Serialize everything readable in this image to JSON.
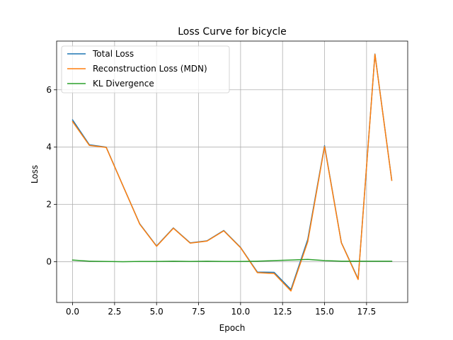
{
  "chart_data": {
    "type": "line",
    "title": "Loss Curve for bicycle",
    "xlabel": "Epoch",
    "ylabel": "Loss",
    "x": [
      0,
      1,
      2,
      3,
      4,
      5,
      6,
      7,
      8,
      9,
      10,
      11,
      12,
      13,
      14,
      15,
      16,
      17,
      18,
      19
    ],
    "xlim": [
      -0.95,
      19.95
    ],
    "ylim": [
      -1.42,
      7.7
    ],
    "xticks": [
      0.0,
      2.5,
      5.0,
      7.5,
      10.0,
      12.5,
      15.0,
      17.5
    ],
    "xtick_labels": [
      "0.0",
      "2.5",
      "5.0",
      "7.5",
      "10.0",
      "12.5",
      "15.0",
      "17.5"
    ],
    "yticks": [
      0,
      2,
      4,
      6
    ],
    "ytick_labels": [
      "0",
      "2",
      "4",
      "6"
    ],
    "grid": true,
    "legend_position": "upper-left",
    "series": [
      {
        "name": "Total Loss",
        "color": "#1f77b4",
        "values": [
          4.95,
          4.08,
          4.0,
          2.65,
          1.32,
          0.55,
          1.18,
          0.66,
          0.73,
          1.09,
          0.5,
          -0.36,
          -0.37,
          -0.97,
          0.78,
          4.05,
          0.67,
          -0.6,
          7.25,
          2.85
        ]
      },
      {
        "name": "Reconstruction Loss (MDN)",
        "color": "#ff7f0e",
        "values": [
          4.89,
          4.06,
          3.99,
          2.65,
          1.31,
          0.54,
          1.17,
          0.65,
          0.72,
          1.08,
          0.49,
          -0.38,
          -0.41,
          -1.02,
          0.7,
          4.02,
          0.66,
          -0.62,
          7.24,
          2.84
        ]
      },
      {
        "name": "KL Divergence",
        "color": "#2ca02c",
        "values": [
          0.06,
          0.02,
          0.01,
          0.0,
          0.01,
          0.01,
          0.02,
          0.01,
          0.02,
          0.01,
          0.01,
          0.02,
          0.04,
          0.06,
          0.08,
          0.04,
          0.02,
          0.02,
          0.02,
          0.02
        ]
      }
    ]
  }
}
